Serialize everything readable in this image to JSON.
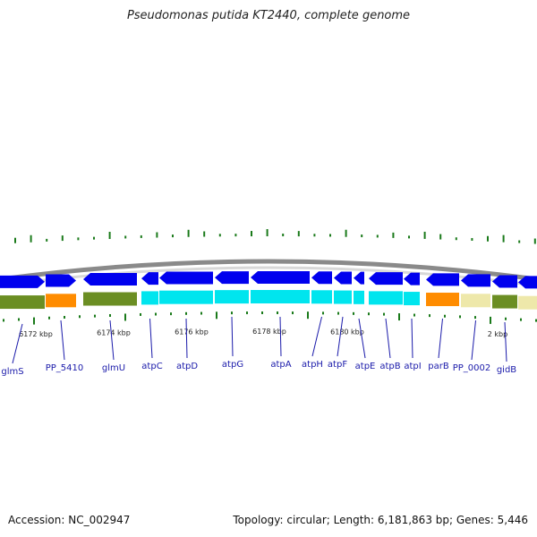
{
  "title": "Pseudomonas putida KT2440, complete genome",
  "footer": {
    "accession": "Accession: NC_002947",
    "summary": "Topology: circular; Length: 6,181,863 bp; Genes: 5,446"
  },
  "colors": {
    "gene_arrow": "#0000ee",
    "gene_label": "#1a1aaa",
    "tick": "#1a7a1a",
    "backbone": "#8a8a8a",
    "atp_operon": "#00e5ee",
    "olive": "#6b8e23",
    "orange": "#ff8c00",
    "pale_yellow": "#eee8aa"
  },
  "scale_labels": [
    "6172 kbp",
    "6174 kbp",
    "6176 kbp",
    "6178 kbp",
    "6180 kbp",
    "2 kbp"
  ],
  "genes": [
    {
      "name": "glmS",
      "strand": "+",
      "category_color": "olive"
    },
    {
      "name": "PP_5410",
      "strand": "+",
      "category_color": "orange"
    },
    {
      "name": "glmU",
      "strand": "-",
      "category_color": "olive"
    },
    {
      "name": "atpC",
      "strand": "-",
      "category_color": "atp_operon"
    },
    {
      "name": "atpD",
      "strand": "-",
      "category_color": "atp_operon"
    },
    {
      "name": "atpG",
      "strand": "-",
      "category_color": "atp_operon"
    },
    {
      "name": "atpA",
      "strand": "-",
      "category_color": "atp_operon"
    },
    {
      "name": "atpH",
      "strand": "-",
      "category_color": "atp_operon"
    },
    {
      "name": "atpF",
      "strand": "-",
      "category_color": "atp_operon"
    },
    {
      "name": "atpE",
      "strand": "-",
      "category_color": "atp_operon"
    },
    {
      "name": "atpB",
      "strand": "-",
      "category_color": "atp_operon"
    },
    {
      "name": "atpI",
      "strand": "-",
      "category_color": "atp_operon"
    },
    {
      "name": "parB",
      "strand": "-",
      "category_color": "orange"
    },
    {
      "name": "PP_0002",
      "strand": "-",
      "category_color": "pale_yellow"
    },
    {
      "name": "gidB",
      "strand": "-",
      "category_color": "olive"
    },
    {
      "name": "",
      "strand": "-",
      "category_color": "pale_yellow"
    }
  ]
}
